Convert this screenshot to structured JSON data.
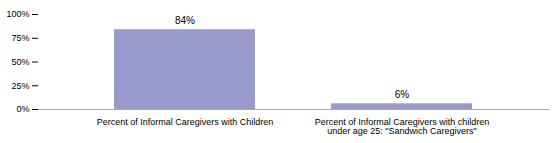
{
  "chart_data": {
    "type": "bar",
    "categories": [
      "Percent of Informal Caregivers with Children",
      "Percent of Informal Caregivers with children\nunder age 25: \"Sandwich Caregivers\""
    ],
    "values": [
      84,
      6
    ],
    "value_labels": [
      "84%",
      "6%"
    ],
    "color": "#9999cc",
    "ylim": [
      0,
      100
    ],
    "yticks": [
      {
        "value": 0,
        "label": "0%"
      },
      {
        "value": 25,
        "label": "25%"
      },
      {
        "value": 50,
        "label": "50%"
      },
      {
        "value": 75,
        "label": "75%"
      },
      {
        "value": 100,
        "label": "100%"
      }
    ],
    "data_labels": true,
    "grid": false
  }
}
